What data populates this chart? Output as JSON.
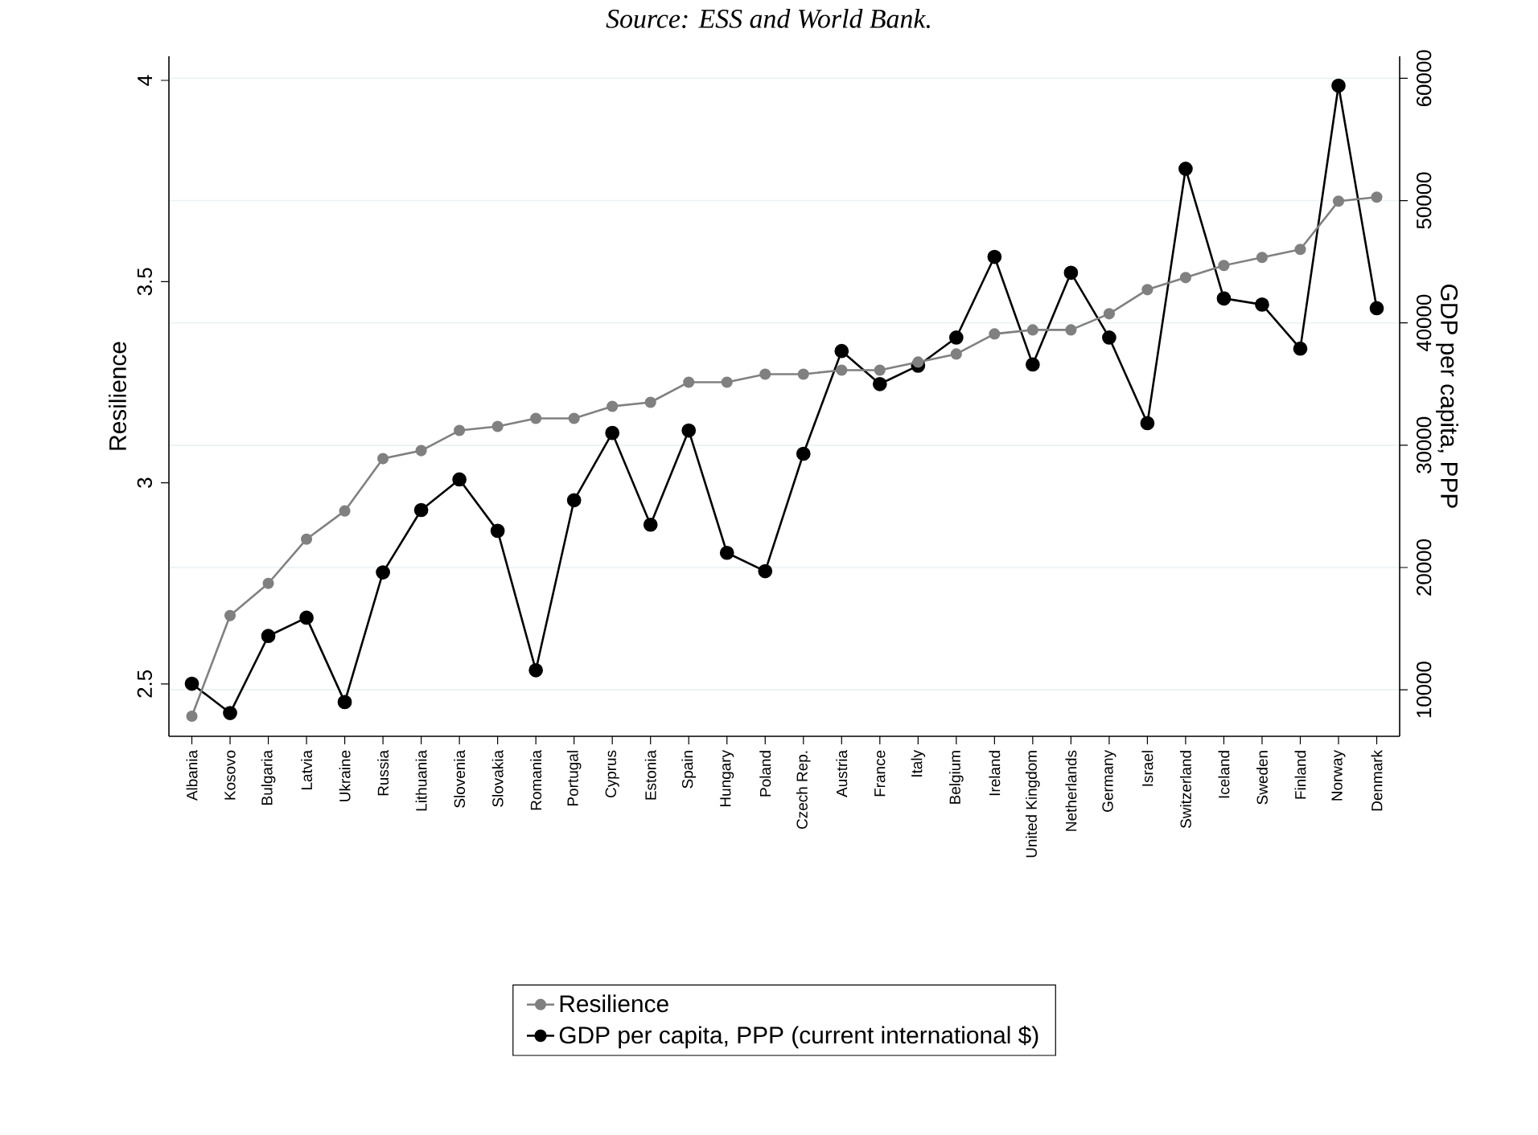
{
  "chart_data": {
    "type": "line",
    "annotations": [
      "Source: ESS and World Bank."
    ],
    "ylabel": "Resilience",
    "y2label": "GDP per capita, PPP",
    "categories": [
      "Albania",
      "Kosovo",
      "Bulgaria",
      "Latvia",
      "Ukraine",
      "Russia",
      "Lithuania",
      "Slovenia",
      "Slovakia",
      "Romania",
      "Portugal",
      "Cyprus",
      "Estonia",
      "Spain",
      "Hungary",
      "Poland",
      "Czech Rep.",
      "Austria",
      "France",
      "Italy",
      "Belgium",
      "Ireland",
      "United Kingdom",
      "Netherlands",
      "Germany",
      "Israel",
      "Switzerland",
      "Iceland",
      "Sweden",
      "Finland",
      "Norway",
      "Denmark"
    ],
    "series": [
      {
        "name": "Resilience",
        "color": "#808080",
        "values": [
          2.42,
          2.67,
          2.75,
          2.86,
          2.93,
          3.06,
          3.08,
          3.13,
          3.14,
          3.16,
          3.16,
          3.19,
          3.2,
          3.25,
          3.25,
          3.27,
          3.27,
          3.28,
          3.28,
          3.3,
          3.32,
          3.37,
          3.38,
          3.38,
          3.42,
          3.48,
          3.51,
          3.54,
          3.56,
          3.58,
          3.7,
          3.71
        ]
      },
      {
        "name": "GDP per capita, PPP (current international $)",
        "color": "#000000",
        "axis": "y2",
        "values": [
          10500,
          8100,
          14400,
          15900,
          9000,
          19600,
          24700,
          27200,
          23000,
          11600,
          25500,
          31000,
          23500,
          31200,
          21200,
          19700,
          29300,
          37700,
          35000,
          36500,
          38800,
          45400,
          36600,
          44100,
          38800,
          31800,
          52600,
          42000,
          41500,
          37900,
          59400,
          41200
        ]
      }
    ],
    "ylim": [
      2.37,
      4.06
    ],
    "yticks": [
      2.5,
      3,
      3.5,
      4
    ],
    "y2lim": [
      6200,
      61800
    ],
    "y2ticks": [
      10000,
      20000,
      30000,
      40000,
      50000,
      60000
    ],
    "grid": true,
    "legend": "bottom",
    "marker": "circle",
    "line_style": "solid"
  }
}
